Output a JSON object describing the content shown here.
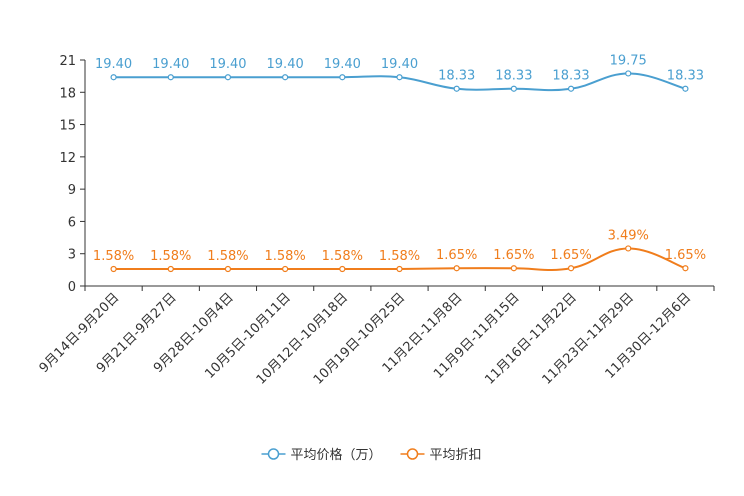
{
  "chart_data": {
    "type": "line",
    "categories": [
      "9月14日-9月20日",
      "9月21日-9月27日",
      "9月28日-10月4日",
      "10月5日-10月11日",
      "10月12日-10月18日",
      "10月19日-10月25日",
      "11月2日-11月8日",
      "11月9日-11月15日",
      "11月16日-11月22日",
      "11月23日-11月29日",
      "11月30日-12月6日"
    ],
    "series": [
      {
        "name": "平均价格（万）",
        "color": "#4a9fd0",
        "values": [
          19.4,
          19.4,
          19.4,
          19.4,
          19.4,
          19.4,
          18.33,
          18.33,
          18.33,
          19.75,
          18.33
        ],
        "labels": [
          "19.40",
          "19.40",
          "19.40",
          "19.40",
          "19.40",
          "19.40",
          "18.33",
          "18.33",
          "18.33",
          "19.75",
          "18.33"
        ]
      },
      {
        "name": "平均折扣",
        "color": "#f07d1c",
        "values": [
          1.58,
          1.58,
          1.58,
          1.58,
          1.58,
          1.58,
          1.65,
          1.65,
          1.65,
          3.49,
          1.65
        ],
        "labels": [
          "1.58%",
          "1.58%",
          "1.58%",
          "1.58%",
          "1.58%",
          "1.58%",
          "1.65%",
          "1.65%",
          "1.65%",
          "3.49%",
          "1.65%"
        ]
      }
    ],
    "yticks": [
      "0",
      "3",
      "6",
      "9",
      "12",
      "15",
      "18",
      "21"
    ],
    "ylim": [
      0,
      21
    ],
    "grid": false,
    "legend_position": "bottom-center"
  }
}
